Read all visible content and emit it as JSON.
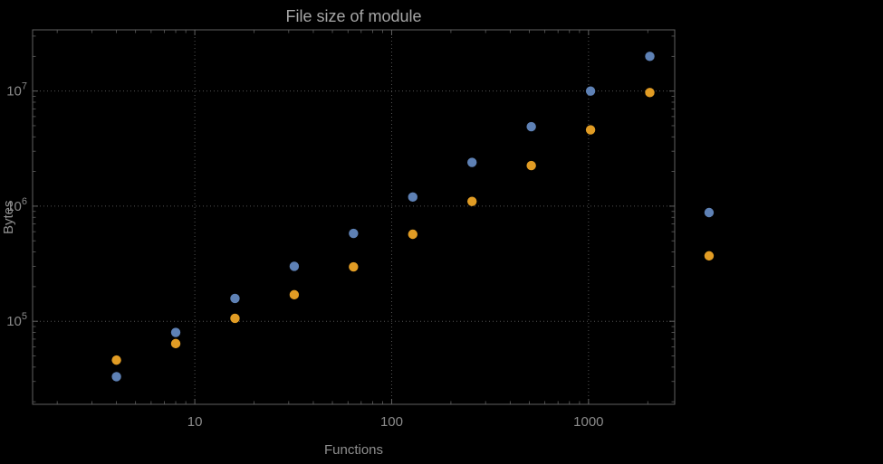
{
  "chart_data": {
    "type": "scatter",
    "title": "File size of module",
    "xlabel": "Functions",
    "ylabel": "Bytes",
    "x_scale": "log",
    "y_scale": "log",
    "grid": "dotted gridlines at major ticks",
    "legend": "none",
    "xlim": [
      1.5,
      2740
    ],
    "ylim": [
      19000,
      34000000
    ],
    "x_ticks": [
      10,
      100,
      1000
    ],
    "x_tick_labels": [
      "10",
      "100",
      "1000"
    ],
    "y_ticks": [
      100000,
      1000000,
      10000000
    ],
    "y_tick_labels": [
      {
        "base": "10",
        "exp": "5"
      },
      {
        "base": "10",
        "exp": "6"
      },
      {
        "base": "10",
        "exp": "7"
      }
    ],
    "x": [
      4,
      8,
      16,
      32,
      64,
      128,
      256,
      512,
      1024,
      2048,
      4096
    ],
    "series": [
      {
        "name": "series-1-blue",
        "color": "#5e81b5",
        "values": [
          33000,
          80000,
          158000,
          300000,
          580000,
          1200000,
          2400000,
          4900000,
          10000000,
          20000000,
          880000
        ]
      },
      {
        "name": "series-2-orange",
        "color": "#e19c24",
        "values": [
          46000,
          64000,
          106000,
          170000,
          297000,
          570000,
          1100000,
          2250000,
          4600000,
          9700000,
          370000
        ]
      }
    ]
  },
  "style": {
    "background": "#000000",
    "title_color": "#a6a6a6",
    "label_color": "#8f8f8f",
    "tick_label_color": "#8a8a8a",
    "frame_color": "#606060",
    "grid_color": "#525252"
  }
}
